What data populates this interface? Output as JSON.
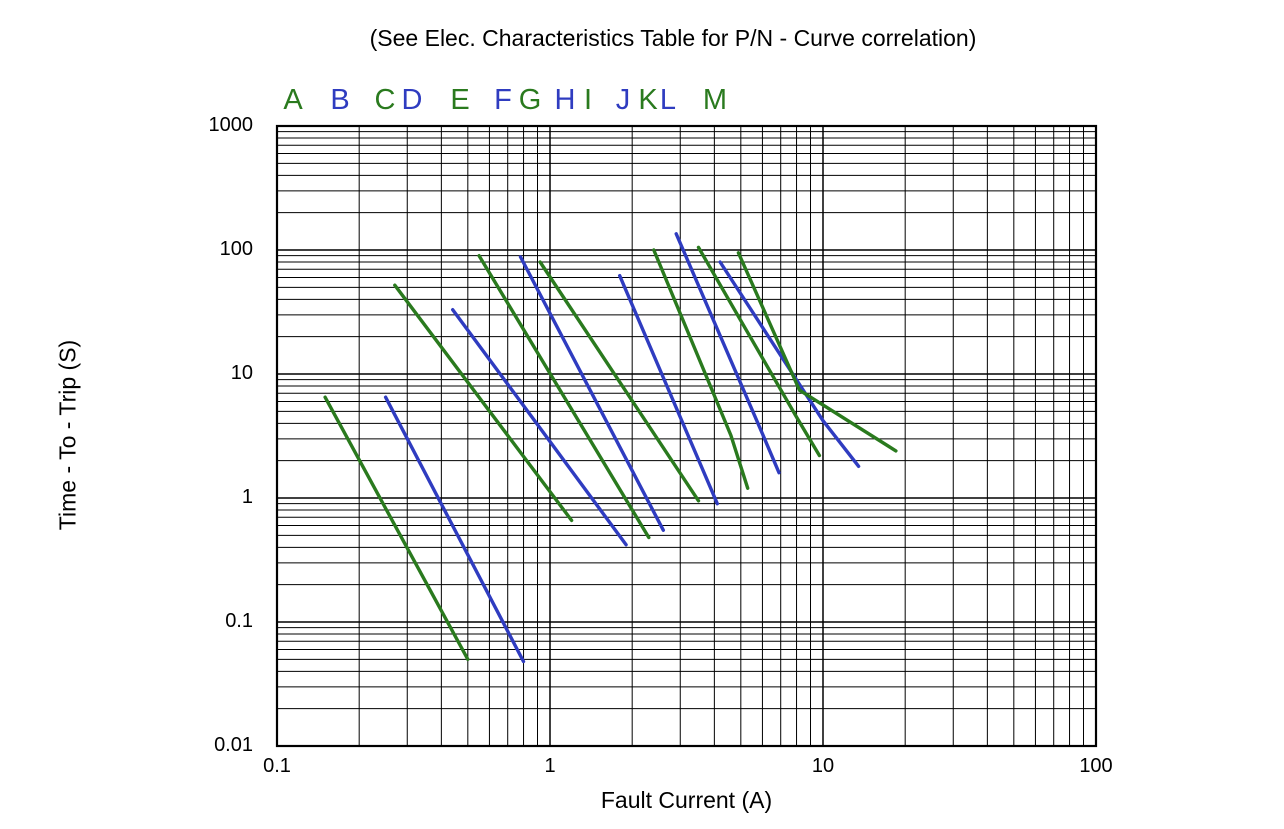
{
  "title": "(See Elec. Characteristics Table for P/N - Curve correlation)",
  "chart_data": {
    "type": "line",
    "title": "(See Elec. Characteristics Table for P/N - Curve correlation)",
    "xlabel": "Fault Current (A)",
    "ylabel": "Time - To - Trip (S)",
    "x_scale": "log",
    "y_scale": "log",
    "xlim": [
      0.1,
      100
    ],
    "ylim": [
      0.01,
      1000
    ],
    "grid": "full log-log minor and major grid, black lines",
    "legend_position": "top row of colored letters above plot",
    "x_ticks": [
      "0.1",
      "1",
      "10",
      "100"
    ],
    "x_tick_values": [
      0.1,
      1,
      10,
      100
    ],
    "y_ticks": [
      "1000",
      "100",
      "10",
      "1",
      "0.1",
      "0.01"
    ],
    "y_tick_values": [
      1000,
      100,
      10,
      1,
      0.1,
      0.01
    ],
    "colors": {
      "green": "#2a7a1e",
      "blue": "#2f3cc0"
    },
    "series": [
      {
        "name": "A",
        "color": "green",
        "points": [
          [
            0.15,
            6.5
          ],
          [
            0.5,
            0.05
          ]
        ]
      },
      {
        "name": "B",
        "color": "blue",
        "points": [
          [
            0.25,
            6.5
          ],
          [
            0.8,
            0.048
          ]
        ]
      },
      {
        "name": "C",
        "color": "green",
        "points": [
          [
            0.27,
            52
          ],
          [
            1.2,
            0.66
          ]
        ]
      },
      {
        "name": "D",
        "color": "blue",
        "points": [
          [
            0.44,
            33
          ],
          [
            1.9,
            0.42
          ]
        ]
      },
      {
        "name": "E",
        "color": "green",
        "points": [
          [
            0.55,
            90
          ],
          [
            2.3,
            0.48
          ]
        ]
      },
      {
        "name": "F",
        "color": "blue",
        "points": [
          [
            0.78,
            88
          ],
          [
            2.6,
            0.55
          ]
        ]
      },
      {
        "name": "G",
        "color": "green",
        "points": [
          [
            0.92,
            80
          ],
          [
            3.5,
            0.95
          ]
        ]
      },
      {
        "name": "H",
        "color": "blue",
        "points": [
          [
            1.8,
            62
          ],
          [
            4.1,
            0.9
          ]
        ]
      },
      {
        "name": "I",
        "color": "green",
        "points": [
          [
            2.4,
            100
          ],
          [
            4.6,
            3.2
          ],
          [
            5.3,
            1.2
          ]
        ]
      },
      {
        "name": "J",
        "color": "blue",
        "points": [
          [
            2.9,
            135
          ],
          [
            6.0,
            3.3
          ],
          [
            6.9,
            1.6
          ]
        ]
      },
      {
        "name": "K",
        "color": "green",
        "points": [
          [
            3.5,
            105
          ],
          [
            8.0,
            4.5
          ],
          [
            9.7,
            2.2
          ]
        ]
      },
      {
        "name": "L",
        "color": "blue",
        "points": [
          [
            4.2,
            80
          ],
          [
            10.0,
            4.2
          ],
          [
            13.5,
            1.8
          ]
        ]
      },
      {
        "name": "M",
        "color": "green",
        "points": [
          [
            4.9,
            95
          ],
          [
            8.2,
            7.4
          ],
          [
            18.5,
            2.4
          ]
        ]
      }
    ]
  }
}
